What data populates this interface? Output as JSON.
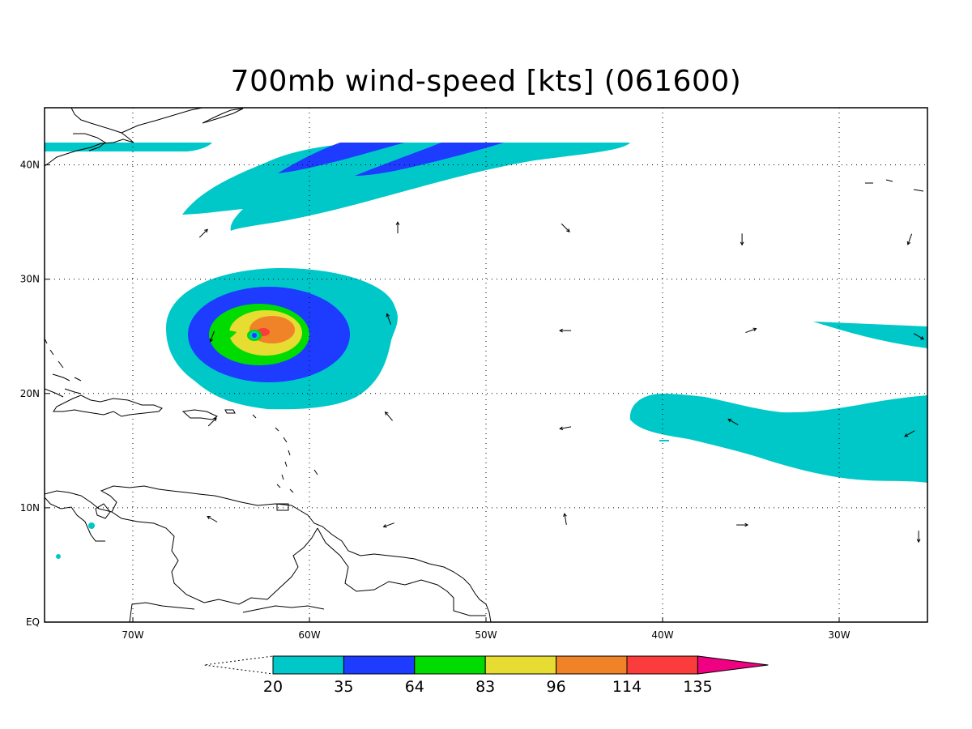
{
  "title": "700mb wind-speed [kts] (061600)",
  "axes": {
    "x_ticks": [
      {
        "label": "70W",
        "value": -70
      },
      {
        "label": "60W",
        "value": -60
      },
      {
        "label": "50W",
        "value": -50
      },
      {
        "label": "40W",
        "value": -40
      },
      {
        "label": "30W",
        "value": -30
      }
    ],
    "y_ticks": [
      {
        "label": "EQ",
        "value": 0
      },
      {
        "label": "10N",
        "value": 10
      },
      {
        "label": "20N",
        "value": 20
      },
      {
        "label": "30N",
        "value": 30
      },
      {
        "label": "40N",
        "value": 40
      }
    ],
    "lon_range": [
      -75,
      -25
    ],
    "lat_range": [
      0,
      45
    ],
    "grid": "dotted"
  },
  "colorbar": {
    "levels": [
      "20",
      "35",
      "64",
      "83",
      "96",
      "114",
      "135"
    ],
    "colors": [
      "#00c8c8",
      "#1e3cff",
      "#00dc00",
      "#e6dc32",
      "#f08228",
      "#fa3c3c",
      "#f00082"
    ],
    "under": "white",
    "over": "#f00082"
  },
  "wind_arrows": [
    {
      "lon": -66,
      "lat": 34,
      "dir_deg": 45
    },
    {
      "lon": -55,
      "lat": 34.5,
      "dir_deg": 0
    },
    {
      "lon": -45.5,
      "lat": 34.5,
      "dir_deg": 135
    },
    {
      "lon": -35.5,
      "lat": 33.5,
      "dir_deg": 180
    },
    {
      "lon": -26,
      "lat": 33.5,
      "dir_deg": 200
    },
    {
      "lon": -65.5,
      "lat": 25,
      "dir_deg": 200
    },
    {
      "lon": -55.5,
      "lat": 26.5,
      "dir_deg": 340
    },
    {
      "lon": -45.5,
      "lat": 25.5,
      "dir_deg": 270
    },
    {
      "lon": -35,
      "lat": 25.5,
      "dir_deg": 70
    },
    {
      "lon": -25.5,
      "lat": 25,
      "dir_deg": 120
    },
    {
      "lon": -65.5,
      "lat": 17.5,
      "dir_deg": 45
    },
    {
      "lon": -55.5,
      "lat": 18,
      "dir_deg": 320
    },
    {
      "lon": -45.5,
      "lat": 17,
      "dir_deg": 260
    },
    {
      "lon": -36,
      "lat": 17.5,
      "dir_deg": 300
    },
    {
      "lon": -26,
      "lat": 16.5,
      "dir_deg": 240
    },
    {
      "lon": -65.5,
      "lat": 9,
      "dir_deg": 300
    },
    {
      "lon": -55.5,
      "lat": 8.5,
      "dir_deg": 250
    },
    {
      "lon": -45.5,
      "lat": 9,
      "dir_deg": 350
    },
    {
      "lon": -35.5,
      "lat": 8.5,
      "dir_deg": 90
    },
    {
      "lon": -25.5,
      "lat": 7.5,
      "dir_deg": 180
    }
  ]
}
